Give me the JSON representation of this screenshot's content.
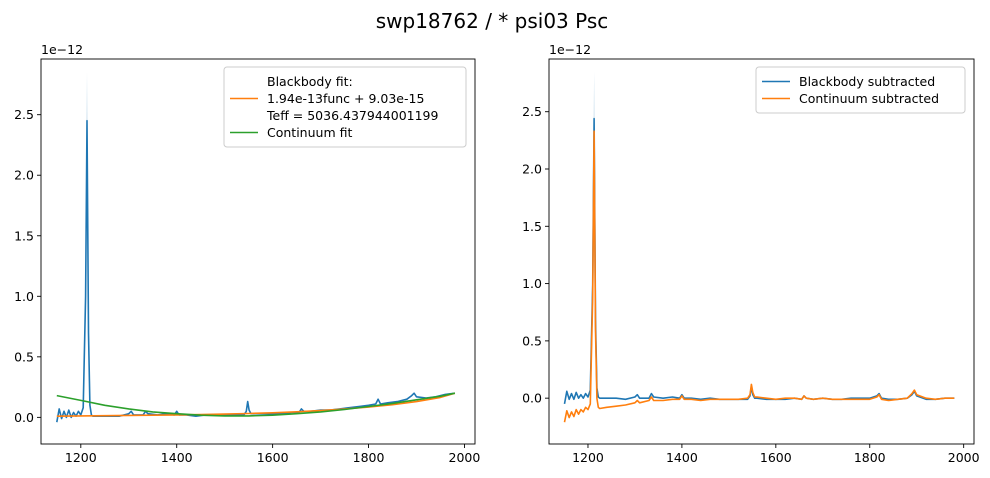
{
  "figure": {
    "title": "swp18762 / * psi03 Psc"
  },
  "chart_data": [
    {
      "type": "line",
      "title": "",
      "xlabel": "",
      "ylabel": "",
      "y_offset_label": "1e−12",
      "xlim": [
        1117,
        2022
      ],
      "ylim": [
        -0.22,
        2.96
      ],
      "xticks": [
        1200,
        1400,
        1600,
        1800,
        2000
      ],
      "yticks": [
        0.0,
        0.5,
        1.0,
        1.5,
        2.0,
        2.5
      ],
      "ytick_labels": [
        "0.0",
        "0.5",
        "1.0",
        "1.5",
        "2.0",
        "2.5"
      ],
      "grid": false,
      "legend_position": "top-right",
      "series": [
        {
          "key": "data",
          "name": "",
          "color": "#1f77b4",
          "x": [
            1150,
            1155,
            1160,
            1165,
            1170,
            1175,
            1180,
            1185,
            1190,
            1195,
            1200,
            1205,
            1210,
            1213,
            1216,
            1219,
            1222,
            1225,
            1230,
            1240,
            1260,
            1280,
            1300,
            1305,
            1310,
            1330,
            1335,
            1340,
            1360,
            1380,
            1395,
            1400,
            1405,
            1420,
            1440,
            1460,
            1480,
            1500,
            1520,
            1540,
            1545,
            1548,
            1551,
            1555,
            1560,
            1580,
            1600,
            1620,
            1640,
            1655,
            1660,
            1665,
            1680,
            1700,
            1720,
            1740,
            1760,
            1780,
            1800,
            1815,
            1820,
            1825,
            1840,
            1860,
            1880,
            1890,
            1895,
            1900,
            1920,
            1940,
            1960,
            1980
          ],
          "y": [
            -0.04,
            0.07,
            -0.01,
            0.05,
            0.0,
            0.06,
            0.0,
            0.04,
            0.01,
            0.05,
            0.02,
            0.08,
            1.0,
            2.45,
            0.7,
            0.1,
            0.02,
            0.01,
            0.01,
            0.01,
            0.01,
            0.01,
            0.03,
            0.05,
            0.02,
            0.02,
            0.05,
            0.03,
            0.02,
            0.03,
            0.02,
            0.05,
            0.02,
            0.02,
            0.01,
            0.02,
            0.02,
            0.02,
            0.02,
            0.02,
            0.05,
            0.13,
            0.06,
            0.03,
            0.03,
            0.03,
            0.03,
            0.03,
            0.04,
            0.04,
            0.07,
            0.05,
            0.05,
            0.06,
            0.06,
            0.07,
            0.08,
            0.09,
            0.1,
            0.11,
            0.15,
            0.11,
            0.12,
            0.13,
            0.15,
            0.18,
            0.2,
            0.17,
            0.16,
            0.17,
            0.19,
            0.2
          ]
        },
        {
          "key": "blackbody",
          "name": "Blackbody fit:\n1.94e-13func + 9.03e-15\nTeff = 5036.437944001199",
          "color": "#ff7f0e",
          "x": [
            1150,
            1200,
            1250,
            1300,
            1350,
            1400,
            1450,
            1500,
            1550,
            1600,
            1650,
            1700,
            1750,
            1800,
            1850,
            1900,
            1950,
            1980
          ],
          "y": [
            0.01,
            0.012,
            0.014,
            0.016,
            0.018,
            0.02,
            0.023,
            0.027,
            0.032,
            0.038,
            0.046,
            0.056,
            0.069,
            0.085,
            0.105,
            0.13,
            0.165,
            0.2
          ]
        },
        {
          "key": "continuum",
          "name": "Continuum fit",
          "color": "#2ca02c",
          "x": [
            1150,
            1200,
            1250,
            1300,
            1350,
            1400,
            1450,
            1500,
            1550,
            1600,
            1650,
            1700,
            1750,
            1800,
            1850,
            1900,
            1950,
            1980
          ],
          "y": [
            0.18,
            0.14,
            0.1,
            0.07,
            0.045,
            0.03,
            0.018,
            0.012,
            0.012,
            0.018,
            0.03,
            0.045,
            0.065,
            0.09,
            0.115,
            0.145,
            0.175,
            0.2
          ]
        }
      ],
      "error_band": {
        "color": "#1f77b4",
        "x": [
          1200,
          1205,
          1210,
          1213,
          1216,
          1219,
          1222
        ],
        "y_low": [
          0.02,
          0.07,
          0.8,
          2.2,
          0.55,
          0.08,
          0.02
        ],
        "y_high": [
          0.02,
          0.09,
          1.25,
          2.85,
          0.9,
          0.12,
          0.02
        ]
      }
    },
    {
      "type": "line",
      "title": "",
      "xlabel": "",
      "ylabel": "",
      "y_offset_label": "1e−12",
      "xlim": [
        1117,
        2022
      ],
      "ylim": [
        -0.4,
        2.96
      ],
      "xticks": [
        1200,
        1400,
        1600,
        1800,
        2000
      ],
      "yticks": [
        0.0,
        0.5,
        1.0,
        1.5,
        2.0,
        2.5
      ],
      "ytick_labels": [
        "0.0",
        "0.5",
        "1.0",
        "1.5",
        "2.0",
        "2.5"
      ],
      "grid": false,
      "legend_position": "top-right",
      "series": [
        {
          "key": "bb_sub",
          "name": "Blackbody subtracted",
          "color": "#1f77b4",
          "x": [
            1150,
            1155,
            1160,
            1165,
            1170,
            1175,
            1180,
            1185,
            1190,
            1195,
            1200,
            1205,
            1210,
            1213,
            1216,
            1219,
            1222,
            1225,
            1240,
            1260,
            1280,
            1300,
            1305,
            1310,
            1330,
            1335,
            1340,
            1360,
            1380,
            1395,
            1400,
            1405,
            1420,
            1440,
            1460,
            1480,
            1500,
            1520,
            1540,
            1545,
            1548,
            1551,
            1555,
            1560,
            1580,
            1600,
            1620,
            1640,
            1655,
            1660,
            1665,
            1680,
            1700,
            1720,
            1740,
            1760,
            1780,
            1800,
            1815,
            1820,
            1825,
            1840,
            1860,
            1880,
            1890,
            1895,
            1900,
            1920,
            1940,
            1960,
            1980
          ],
          "y": [
            -0.05,
            0.06,
            -0.01,
            0.04,
            -0.01,
            0.05,
            0.0,
            0.03,
            0.0,
            0.04,
            0.01,
            0.07,
            0.99,
            2.44,
            0.69,
            0.09,
            0.01,
            0.0,
            0.0,
            0.0,
            -0.01,
            0.01,
            0.03,
            0.0,
            0.0,
            0.04,
            0.01,
            0.0,
            0.01,
            0.0,
            0.03,
            0.0,
            0.0,
            -0.01,
            0.0,
            -0.01,
            -0.01,
            -0.01,
            -0.01,
            0.02,
            0.1,
            0.03,
            0.0,
            0.0,
            -0.01,
            -0.01,
            -0.01,
            0.0,
            -0.01,
            0.02,
            0.0,
            -0.01,
            0.0,
            -0.01,
            -0.01,
            0.0,
            0.0,
            0.0,
            0.02,
            0.04,
            0.0,
            -0.01,
            -0.01,
            0.0,
            0.03,
            0.06,
            0.02,
            -0.01,
            -0.01,
            0.0,
            0.0
          ]
        },
        {
          "key": "cont_sub",
          "name": "Continuum subtracted",
          "color": "#ff7f0e",
          "x": [
            1150,
            1155,
            1160,
            1165,
            1170,
            1175,
            1180,
            1185,
            1190,
            1195,
            1200,
            1205,
            1210,
            1213,
            1216,
            1219,
            1222,
            1225,
            1240,
            1260,
            1280,
            1300,
            1305,
            1310,
            1330,
            1335,
            1340,
            1360,
            1380,
            1395,
            1400,
            1405,
            1420,
            1440,
            1460,
            1480,
            1500,
            1520,
            1540,
            1545,
            1548,
            1551,
            1555,
            1560,
            1580,
            1600,
            1620,
            1640,
            1655,
            1660,
            1665,
            1680,
            1700,
            1720,
            1740,
            1760,
            1780,
            1800,
            1815,
            1820,
            1825,
            1840,
            1860,
            1880,
            1890,
            1895,
            1900,
            1920,
            1940,
            1960,
            1980
          ],
          "y": [
            -0.21,
            -0.11,
            -0.17,
            -0.12,
            -0.16,
            -0.1,
            -0.14,
            -0.1,
            -0.12,
            -0.08,
            -0.1,
            -0.05,
            0.88,
            2.33,
            0.59,
            0.0,
            -0.08,
            -0.09,
            -0.08,
            -0.07,
            -0.06,
            -0.04,
            -0.02,
            -0.04,
            -0.02,
            0.01,
            -0.02,
            -0.02,
            -0.01,
            -0.01,
            0.02,
            -0.01,
            -0.01,
            -0.02,
            -0.01,
            -0.01,
            -0.01,
            -0.01,
            0.0,
            0.03,
            0.12,
            0.05,
            0.01,
            0.01,
            0.0,
            -0.01,
            0.0,
            0.0,
            -0.01,
            0.02,
            0.0,
            -0.01,
            0.0,
            -0.01,
            -0.01,
            -0.01,
            -0.01,
            -0.01,
            0.01,
            0.03,
            -0.01,
            -0.02,
            -0.01,
            0.0,
            0.04,
            0.07,
            0.03,
            0.0,
            -0.01,
            0.0,
            0.0
          ]
        }
      ],
      "error_band": {
        "color": "#1f77b4",
        "x": [
          1200,
          1205,
          1210,
          1213,
          1216,
          1219,
          1222
        ],
        "y_low": [
          0.01,
          0.06,
          0.8,
          2.2,
          0.55,
          0.07,
          0.01
        ],
        "y_high": [
          0.01,
          0.08,
          1.25,
          2.85,
          0.9,
          0.11,
          0.01
        ]
      }
    }
  ]
}
